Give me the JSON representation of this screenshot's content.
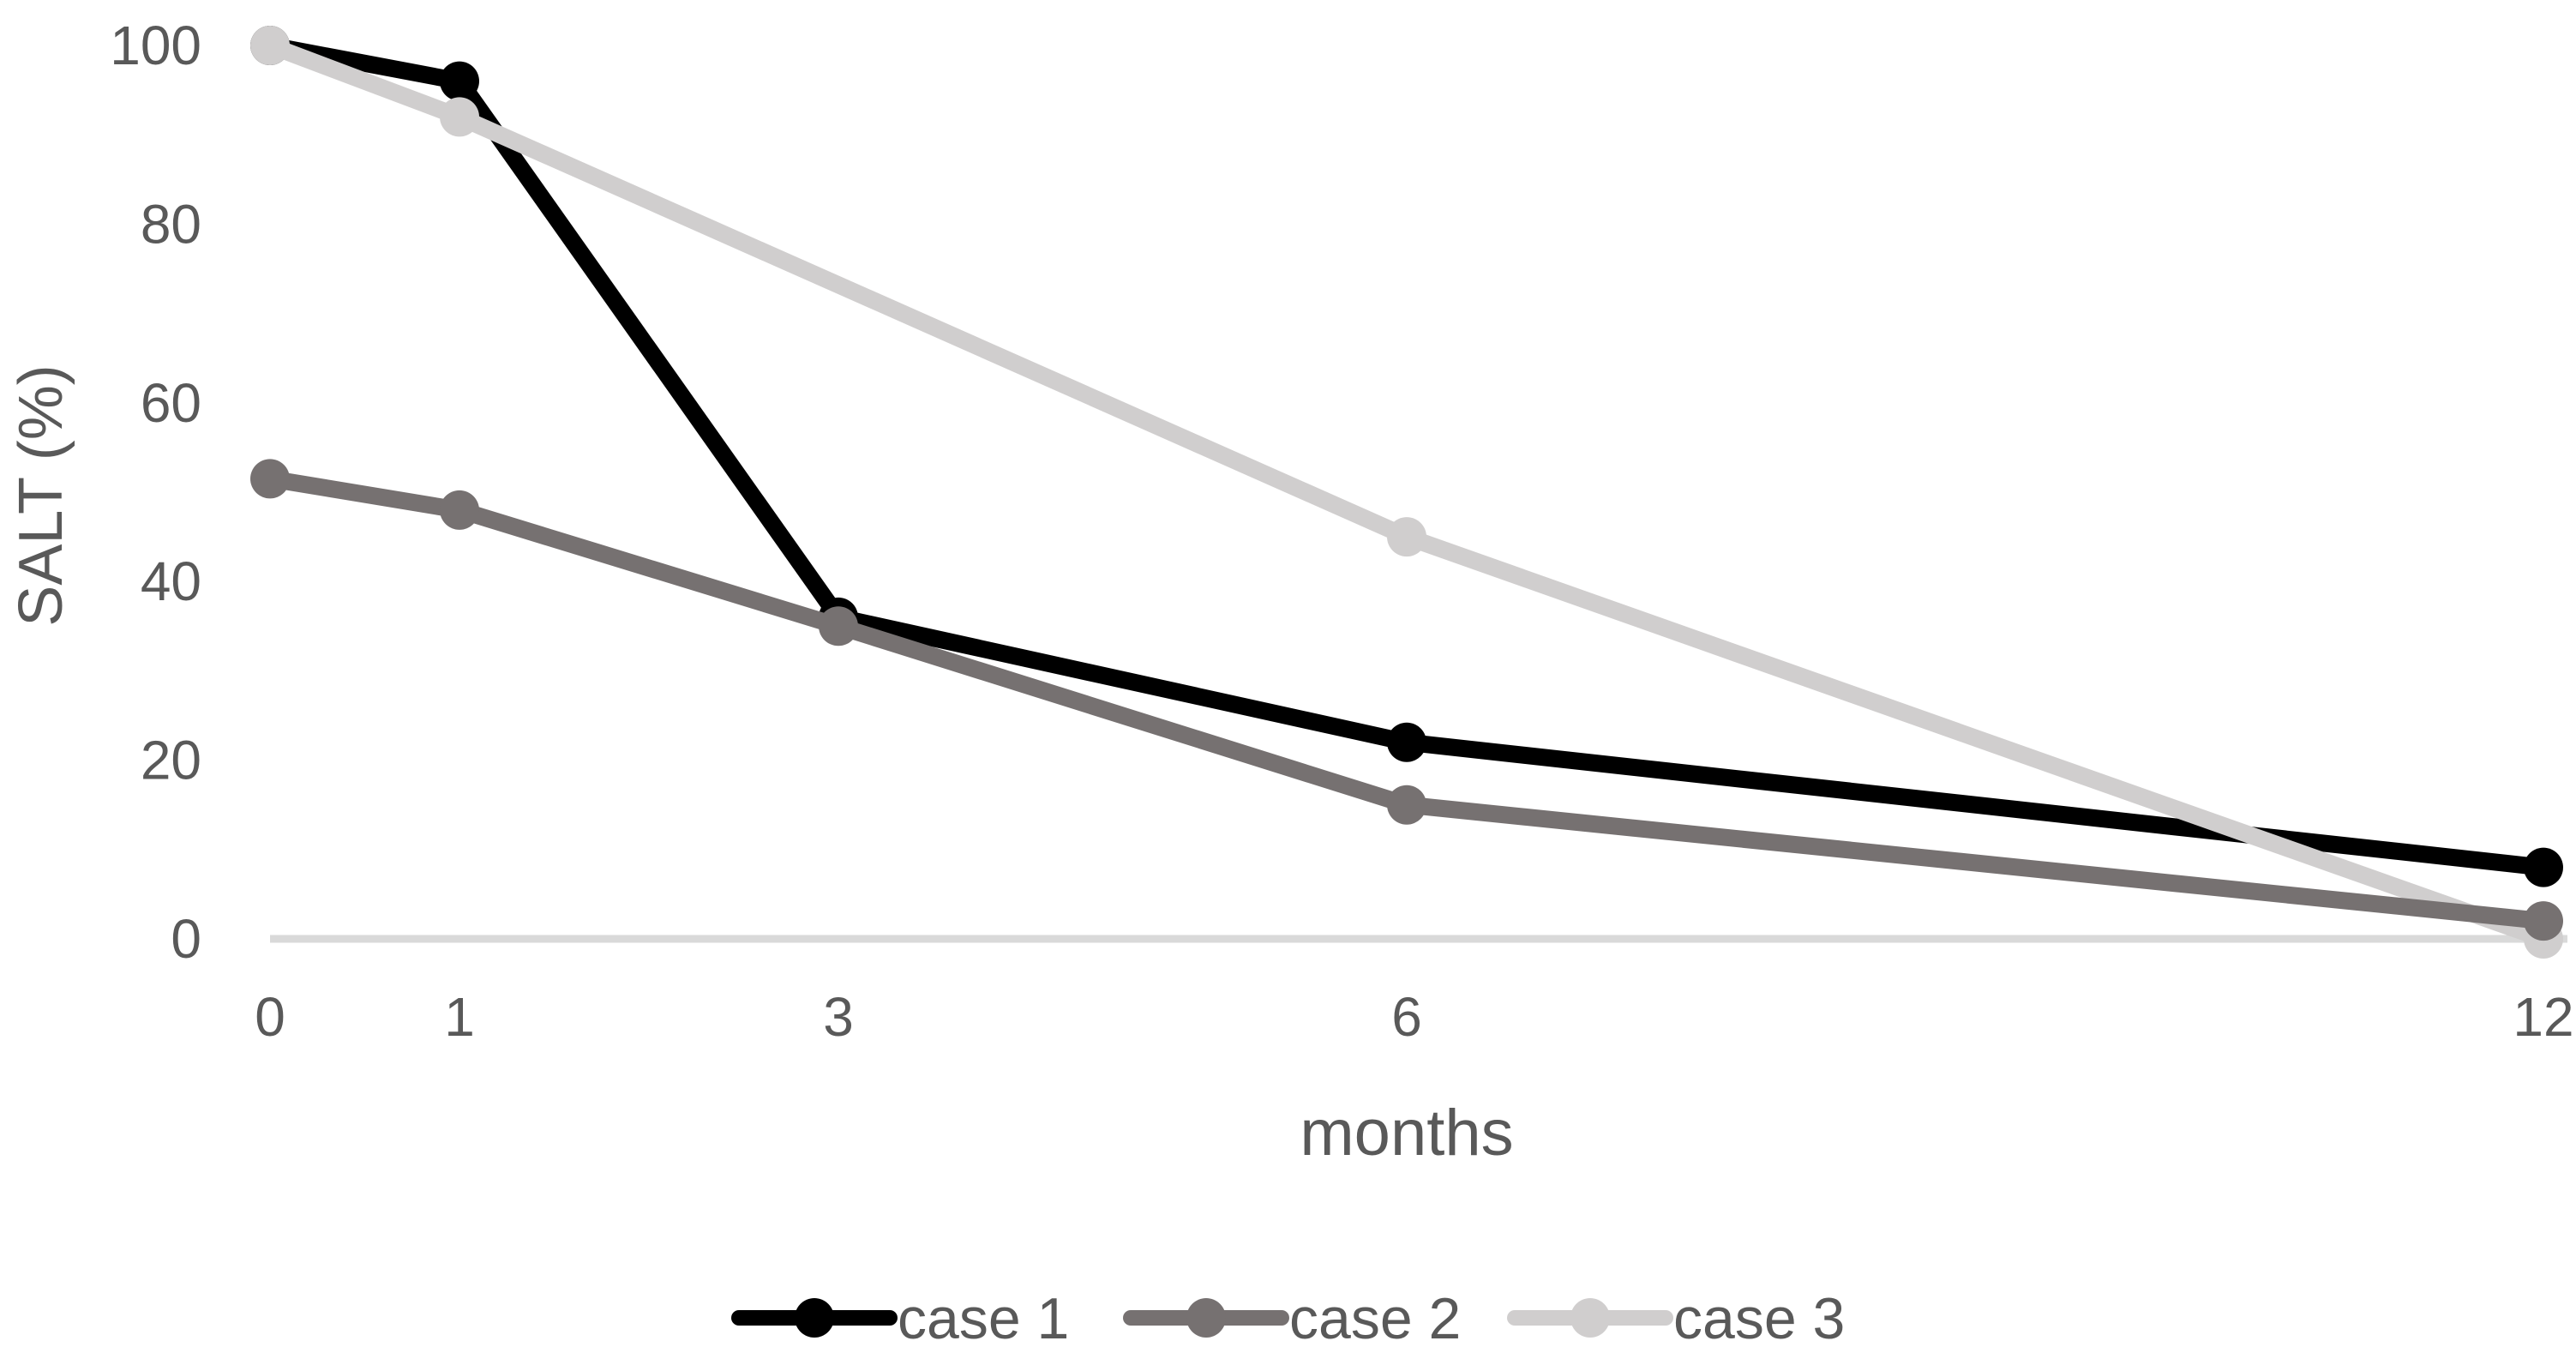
{
  "chart_data": {
    "type": "line",
    "title": "",
    "xlabel": "months",
    "ylabel": "SALT (%)",
    "x": [
      0,
      1,
      3,
      6,
      12
    ],
    "y_ticks": [
      0,
      20,
      40,
      60,
      80,
      100
    ],
    "xlim": [
      0,
      12.15
    ],
    "ylim": [
      0,
      100
    ],
    "grid": false,
    "legend_position": "bottom-center",
    "marker_style": "filled-circle",
    "series": [
      {
        "name": "case 1",
        "color": "#000000",
        "x": [
          0,
          1,
          3,
          6,
          12
        ],
        "y": [
          100,
          96,
          36,
          22,
          8
        ]
      },
      {
        "name": "case 2",
        "color": "#767171",
        "x": [
          0,
          1,
          3,
          6,
          12
        ],
        "y": [
          51.5,
          48,
          35,
          15,
          2
        ]
      },
      {
        "name": "case 3",
        "color": "#d0cece",
        "x": [
          0,
          1,
          6,
          12
        ],
        "y": [
          100,
          92,
          45,
          0
        ]
      }
    ],
    "draw_order": [
      "case 1",
      "case 3",
      "case 2"
    ],
    "axis_line_color": "#d9d9d9",
    "text_color": "#595959",
    "background": "#ffffff"
  }
}
